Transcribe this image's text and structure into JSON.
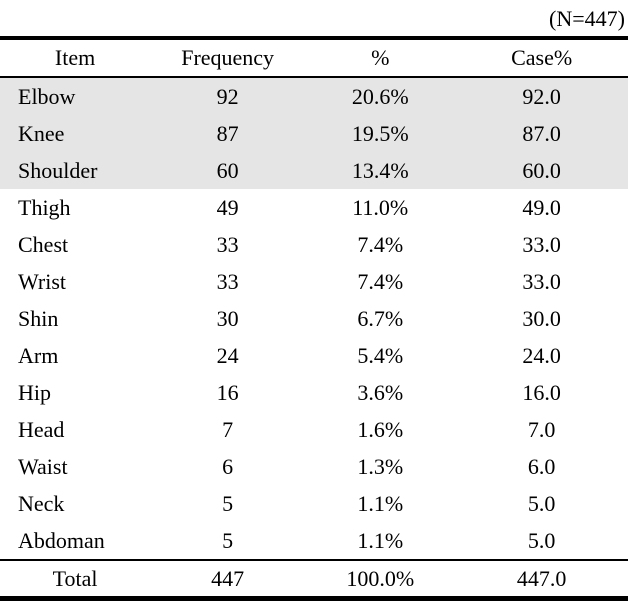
{
  "note": "(N=447)",
  "table": {
    "columns": [
      "Item",
      "Frequency",
      "%",
      "Case%"
    ],
    "rows": [
      {
        "item": "Elbow",
        "frequency": "92",
        "percent": "20.6%",
        "case_percent": "92.0",
        "shaded": true
      },
      {
        "item": "Knee",
        "frequency": "87",
        "percent": "19.5%",
        "case_percent": "87.0",
        "shaded": true
      },
      {
        "item": "Shoulder",
        "frequency": "60",
        "percent": "13.4%",
        "case_percent": "60.0",
        "shaded": true
      },
      {
        "item": "Thigh",
        "frequency": "49",
        "percent": "11.0%",
        "case_percent": "49.0",
        "shaded": false
      },
      {
        "item": "Chest",
        "frequency": "33",
        "percent": "7.4%",
        "case_percent": "33.0",
        "shaded": false
      },
      {
        "item": "Wrist",
        "frequency": "33",
        "percent": "7.4%",
        "case_percent": "33.0",
        "shaded": false
      },
      {
        "item": "Shin",
        "frequency": "30",
        "percent": "6.7%",
        "case_percent": "30.0",
        "shaded": false
      },
      {
        "item": "Arm",
        "frequency": "24",
        "percent": "5.4%",
        "case_percent": "24.0",
        "shaded": false
      },
      {
        "item": "Hip",
        "frequency": "16",
        "percent": "3.6%",
        "case_percent": "16.0",
        "shaded": false
      },
      {
        "item": "Head",
        "frequency": "7",
        "percent": "1.6%",
        "case_percent": "7.0",
        "shaded": false
      },
      {
        "item": "Waist",
        "frequency": "6",
        "percent": "1.3%",
        "case_percent": "6.0",
        "shaded": false
      },
      {
        "item": "Neck",
        "frequency": "5",
        "percent": "1.1%",
        "case_percent": "5.0",
        "shaded": false
      },
      {
        "item": "Abdoman",
        "frequency": "5",
        "percent": "1.1%",
        "case_percent": "5.0",
        "shaded": false
      }
    ],
    "total": {
      "item": "Total",
      "frequency": "447",
      "percent": "100.0%",
      "case_percent": "447.0"
    }
  },
  "colors": {
    "row_shade": "#e5e5e5",
    "border": "#000000",
    "text": "#000000"
  }
}
